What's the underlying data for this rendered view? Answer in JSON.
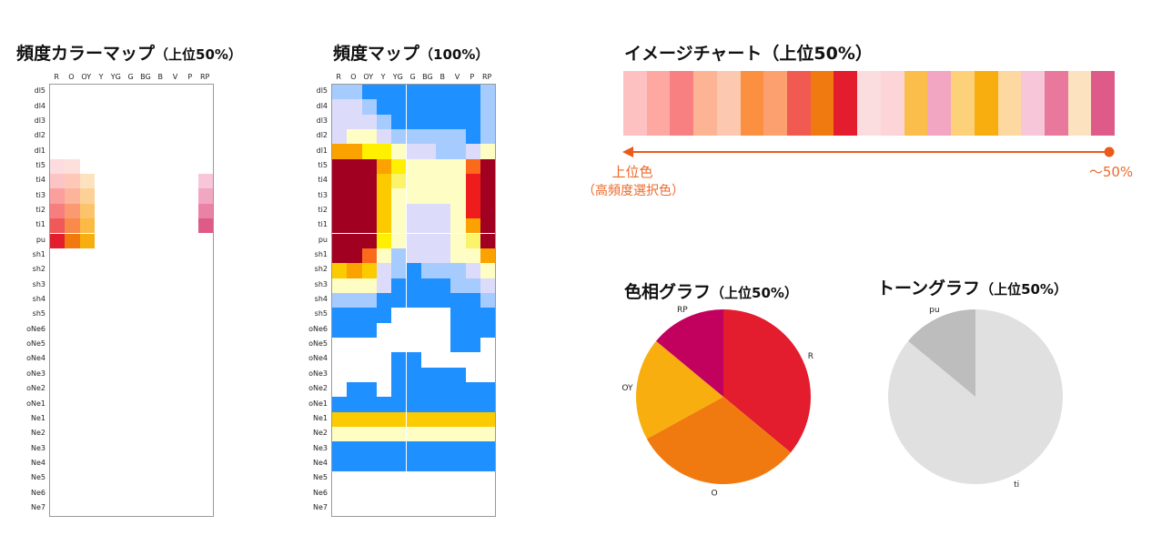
{
  "titles": {
    "freq_color_map": {
      "main": "頻度カラーマップ",
      "sub": "（上位50%）"
    },
    "freq_map": {
      "main": "頻度マップ",
      "sub": "（100%）"
    },
    "image_chart": {
      "main": "イメージチャート（上位50%）",
      "sub": ""
    },
    "hue_graph": {
      "main": "色相グラフ",
      "sub": "（上位50%）"
    },
    "tone_graph": {
      "main": "トーングラフ",
      "sub": "（上位50%）"
    }
  },
  "annotation": {
    "left_line1": "上位色",
    "left_line2": "（高頻度選択色）",
    "right": "～50%",
    "arrow_color": "#ec5a1a"
  },
  "hues": [
    "R",
    "O",
    "OY",
    "Y",
    "YG",
    "G",
    "BG",
    "B",
    "V",
    "P",
    "RP"
  ],
  "tones": [
    "dl5",
    "dl4",
    "dl3",
    "dl2",
    "dl1",
    "ti5",
    "ti4",
    "ti3",
    "ti2",
    "ti1",
    "pu",
    "sh1",
    "sh2",
    "sh3",
    "sh4",
    "sh5",
    "oNe6",
    "oNe5",
    "oNe4",
    "oNe3",
    "oNe2",
    "oNe1",
    "Ne1",
    "Ne2",
    "Ne3",
    "Ne4",
    "Ne5",
    "Ne6",
    "Ne7"
  ],
  "chart_data": [
    {
      "type": "heatmap",
      "title": "頻度カラーマップ（上位50%）",
      "cells": [
        {
          "tone": "ti5",
          "hue": "R",
          "color": "#fcdcdf"
        },
        {
          "tone": "ti5",
          "hue": "O",
          "color": "#fde0dc"
        },
        {
          "tone": "ti4",
          "hue": "R",
          "color": "#fcc4c4"
        },
        {
          "tone": "ti4",
          "hue": "O",
          "color": "#fdc8b8"
        },
        {
          "tone": "ti4",
          "hue": "OY",
          "color": "#fde2c0"
        },
        {
          "tone": "ti4",
          "hue": "RP",
          "color": "#f7c6d8"
        },
        {
          "tone": "ti3",
          "hue": "R",
          "color": "#fa9e9e"
        },
        {
          "tone": "ti3",
          "hue": "O",
          "color": "#fcb49a"
        },
        {
          "tone": "ti3",
          "hue": "OY",
          "color": "#fdd196"
        },
        {
          "tone": "ti3",
          "hue": "RP",
          "color": "#f2a6c2"
        },
        {
          "tone": "ti2",
          "hue": "R",
          "color": "#f77e7e"
        },
        {
          "tone": "ti2",
          "hue": "O",
          "color": "#fb9a70"
        },
        {
          "tone": "ti2",
          "hue": "OY",
          "color": "#fcc46a"
        },
        {
          "tone": "ti2",
          "hue": "RP",
          "color": "#ea82a6"
        },
        {
          "tone": "ti1",
          "hue": "R",
          "color": "#f15858"
        },
        {
          "tone": "ti1",
          "hue": "O",
          "color": "#f98a4a"
        },
        {
          "tone": "ti1",
          "hue": "OY",
          "color": "#fbba44"
        },
        {
          "tone": "ti1",
          "hue": "RP",
          "color": "#de5a88"
        },
        {
          "tone": "pu",
          "hue": "R",
          "color": "#e31c2e"
        },
        {
          "tone": "pu",
          "hue": "O",
          "color": "#f07a10"
        },
        {
          "tone": "pu",
          "hue": "OY",
          "color": "#f8ae0e"
        }
      ]
    },
    {
      "type": "heatmap",
      "title": "頻度マップ（100%）",
      "palette": {
        "1": "#1e90ff",
        "2": "#a6cbff",
        "3": "#dcdcfa",
        "4": "#fdfdc4",
        "5": "#fbf36a",
        "6": "#ffef00",
        "7": "#fbcb00",
        "8": "#fba100",
        "9": "#fb6a1a",
        "10": "#ee1c1c",
        "11": "#a10020"
      },
      "rows": [
        [
          2,
          2,
          1,
          1,
          1,
          1,
          1,
          1,
          1,
          1,
          2
        ],
        [
          3,
          3,
          2,
          1,
          1,
          1,
          1,
          1,
          1,
          1,
          2
        ],
        [
          3,
          3,
          3,
          2,
          1,
          1,
          1,
          1,
          1,
          1,
          2
        ],
        [
          3,
          4,
          4,
          3,
          2,
          2,
          2,
          2,
          2,
          1,
          2
        ],
        [
          8,
          8,
          6,
          6,
          4,
          3,
          3,
          2,
          2,
          3,
          4
        ],
        [
          11,
          11,
          11,
          8,
          6,
          4,
          4,
          4,
          4,
          9,
          11
        ],
        [
          11,
          11,
          11,
          7,
          5,
          4,
          4,
          4,
          4,
          10,
          11
        ],
        [
          11,
          11,
          11,
          7,
          4,
          4,
          4,
          4,
          4,
          10,
          11
        ],
        [
          11,
          11,
          11,
          7,
          4,
          3,
          3,
          3,
          4,
          10,
          11
        ],
        [
          11,
          11,
          11,
          7,
          4,
          3,
          3,
          3,
          4,
          8,
          11
        ],
        [
          11,
          11,
          11,
          6,
          4,
          3,
          3,
          3,
          4,
          5,
          11
        ],
        [
          11,
          11,
          9,
          4,
          2,
          3,
          3,
          3,
          4,
          4,
          8
        ],
        [
          7,
          8,
          7,
          3,
          2,
          1,
          2,
          2,
          2,
          3,
          4
        ],
        [
          4,
          4,
          4,
          3,
          1,
          1,
          1,
          1,
          2,
          2,
          3
        ],
        [
          2,
          2,
          2,
          1,
          1,
          1,
          1,
          1,
          1,
          1,
          2
        ],
        [
          1,
          1,
          1,
          1,
          0,
          0,
          0,
          0,
          1,
          1,
          1
        ],
        [
          1,
          1,
          1,
          0,
          0,
          0,
          0,
          0,
          1,
          1,
          1
        ],
        [
          0,
          0,
          0,
          0,
          0,
          0,
          0,
          0,
          1,
          1,
          0
        ],
        [
          0,
          0,
          0,
          0,
          1,
          1,
          0,
          0,
          0,
          0,
          0
        ],
        [
          0,
          0,
          0,
          0,
          1,
          1,
          1,
          1,
          1,
          0,
          0
        ],
        [
          0,
          1,
          1,
          0,
          1,
          1,
          1,
          1,
          1,
          1,
          1
        ],
        [
          1,
          1,
          1,
          1,
          1,
          1,
          1,
          1,
          1,
          1,
          1
        ],
        [
          7,
          7,
          7,
          7,
          7,
          7,
          7,
          7,
          7,
          7,
          7
        ],
        [
          4,
          4,
          4,
          4,
          4,
          4,
          4,
          4,
          4,
          4,
          4
        ],
        [
          1,
          1,
          1,
          1,
          1,
          1,
          1,
          1,
          1,
          1,
          1
        ],
        [
          1,
          1,
          1,
          1,
          1,
          1,
          1,
          1,
          1,
          1,
          1
        ],
        [
          0,
          0,
          0,
          0,
          0,
          0,
          0,
          0,
          0,
          0,
          0
        ],
        [
          0,
          0,
          0,
          0,
          0,
          0,
          0,
          0,
          0,
          0,
          0
        ],
        [
          0,
          0,
          0,
          0,
          0,
          0,
          0,
          0,
          0,
          0,
          0
        ]
      ]
    },
    {
      "type": "table",
      "title": "イメージチャート（上位50%）",
      "colors": [
        "#fdc1c1",
        "#fda8a1",
        "#f98080",
        "#fdb494",
        "#fdc8b0",
        "#fb9040",
        "#fca070",
        "#f05a50",
        "#f07a10",
        "#e31c2e",
        "#fbdde0",
        "#fdd4d7",
        "#fbbe4a",
        "#f2a6c2",
        "#fdd17a",
        "#f8ae0e",
        "#fdd8a0",
        "#f7c6d8",
        "#e8789c",
        "#fde2c0",
        "#de5a88"
      ]
    },
    {
      "type": "pie",
      "title": "色相グラフ（上位50%）",
      "labels": [
        "R",
        "O",
        "OY",
        "RP"
      ],
      "values": [
        36,
        31,
        19,
        14
      ],
      "colors": [
        "#e31c2e",
        "#f07a10",
        "#f8ae0e",
        "#c2005e"
      ]
    },
    {
      "type": "pie",
      "title": "トーングラフ（上位50%）",
      "labels": [
        "ti",
        "pu"
      ],
      "values": [
        86,
        14
      ],
      "colors": [
        "#e0e0e0",
        "#bdbdbd"
      ]
    }
  ]
}
